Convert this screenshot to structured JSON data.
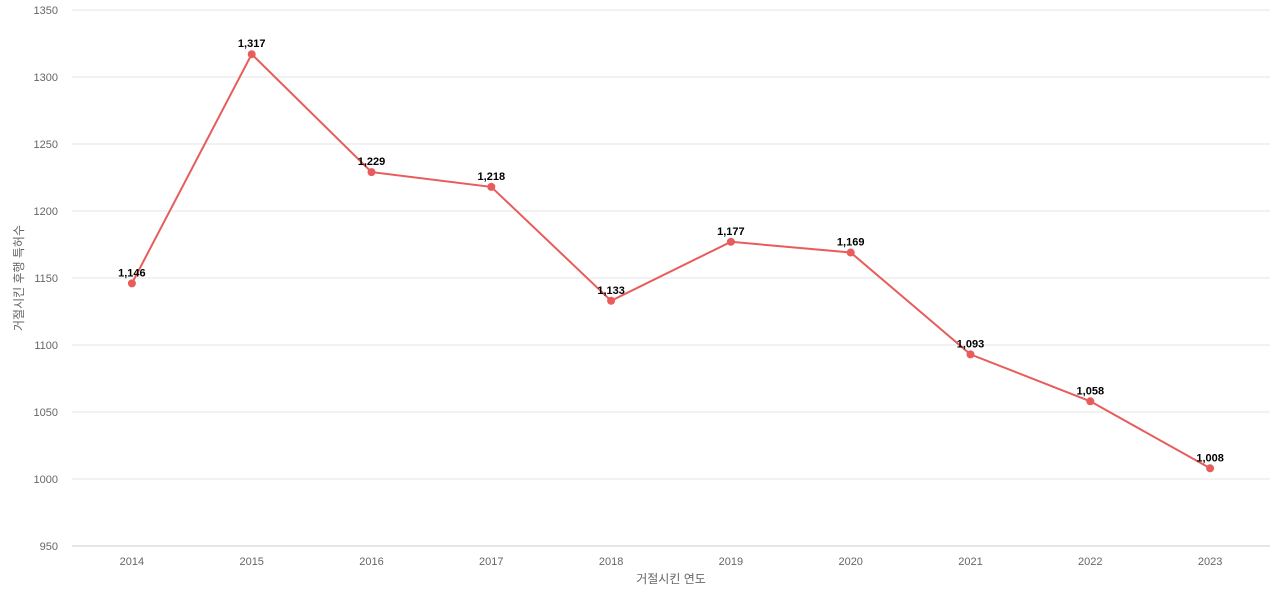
{
  "chart_data": {
    "type": "line",
    "categories": [
      "2014",
      "2015",
      "2016",
      "2017",
      "2018",
      "2019",
      "2020",
      "2021",
      "2022",
      "2023"
    ],
    "series": [
      {
        "values": [
          1146,
          1317,
          1229,
          1218,
          1133,
          1177,
          1169,
          1093,
          1058,
          1008
        ],
        "color": "#e85c5c"
      }
    ],
    "data_labels": [
      "1,146",
      "1,317",
      "1,229",
      "1,218",
      "1,133",
      "1,177",
      "1,169",
      "1,093",
      "1,058",
      "1,008"
    ],
    "xlabel": "거절시킨 연도",
    "ylabel": "거절시킨 후행 특허수",
    "ylim": [
      950,
      1350
    ],
    "yticks": [
      "950",
      "1000",
      "1050",
      "1100",
      "1150",
      "1200",
      "1250",
      "1300",
      "1350"
    ],
    "grid": true
  }
}
